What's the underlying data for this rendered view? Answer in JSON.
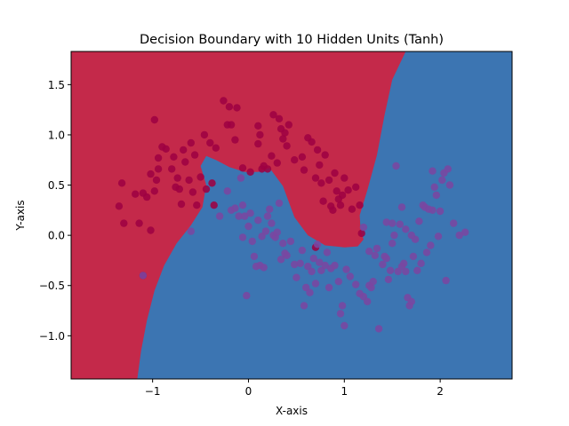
{
  "chart_data": {
    "type": "scatter",
    "title": "Decision Boundary with 10 Hidden Units (Tanh)",
    "xlabel": "X-axis",
    "ylabel": "Y-axis",
    "xlim": [
      -1.85,
      2.75
    ],
    "ylim": [
      -1.43,
      1.83
    ],
    "xticks": [
      -1,
      0,
      1,
      2
    ],
    "xtick_labels": [
      "−1",
      "0",
      "1",
      "2"
    ],
    "yticks": [
      -1.0,
      -0.5,
      0.0,
      0.5,
      1.0,
      1.5
    ],
    "ytick_labels": [
      "−1.0",
      "−0.5",
      "0.0",
      "0.5",
      "1.0",
      "1.5"
    ],
    "grid": false,
    "legend": "none",
    "colors": {
      "region_class_0": "#c4294a",
      "region_class_1": "#3c75b2",
      "point_class_0": "#9e0142",
      "point_class_1": "#7a47a0"
    },
    "boundary": [
      [
        -1.16,
        -1.43
      ],
      [
        -1.12,
        -1.15
      ],
      [
        -1.06,
        -0.85
      ],
      [
        -0.98,
        -0.55
      ],
      [
        -0.88,
        -0.3
      ],
      [
        -0.75,
        -0.08
      ],
      [
        -0.6,
        0.1
      ],
      [
        -0.48,
        0.28
      ],
      [
        -0.44,
        0.5
      ],
      [
        -0.5,
        0.69
      ],
      [
        -0.44,
        0.79
      ],
      [
        -0.34,
        0.75
      ],
      [
        -0.2,
        0.68
      ],
      [
        -0.04,
        0.63
      ],
      [
        0.1,
        0.63
      ],
      [
        0.22,
        0.67
      ],
      [
        0.36,
        0.49
      ],
      [
        0.48,
        0.18
      ],
      [
        0.62,
        0.0
      ],
      [
        0.8,
        -0.1
      ],
      [
        1.0,
        -0.12
      ],
      [
        1.14,
        -0.11
      ],
      [
        1.2,
        -0.04
      ],
      [
        1.17,
        0.05
      ],
      [
        1.16,
        0.2
      ],
      [
        1.24,
        0.45
      ],
      [
        1.34,
        0.8
      ],
      [
        1.42,
        1.2
      ],
      [
        1.5,
        1.55
      ],
      [
        1.64,
        1.83
      ]
    ],
    "series": [
      {
        "class": 0,
        "points": [
          [
            -1.32,
            0.52
          ],
          [
            -1.35,
            0.29
          ],
          [
            -1.3,
            0.12
          ],
          [
            -1.18,
            0.41
          ],
          [
            -1.14,
            0.12
          ],
          [
            -1.1,
            0.42
          ],
          [
            -1.06,
            0.38
          ],
          [
            -1.02,
            0.05
          ],
          [
            -1.02,
            0.61
          ],
          [
            -0.98,
            0.44
          ],
          [
            -0.96,
            0.55
          ],
          [
            -0.94,
            0.66
          ],
          [
            -0.94,
            0.77
          ],
          [
            -0.9,
            0.88
          ],
          [
            -0.86,
            0.86
          ],
          [
            -0.8,
            0.66
          ],
          [
            -0.78,
            0.78
          ],
          [
            -0.76,
            0.48
          ],
          [
            -0.74,
            0.57
          ],
          [
            -0.72,
            0.46
          ],
          [
            -0.7,
            0.31
          ],
          [
            -0.68,
            0.85
          ],
          [
            -0.66,
            0.73
          ],
          [
            -0.62,
            0.55
          ],
          [
            -0.6,
            0.92
          ],
          [
            -0.58,
            0.43
          ],
          [
            -0.56,
            0.8
          ],
          [
            -0.54,
            0.3
          ],
          [
            -0.5,
            0.58
          ],
          [
            -0.46,
            1.0
          ],
          [
            -0.44,
            0.46
          ],
          [
            -0.4,
            0.92
          ],
          [
            -0.38,
            0.52
          ],
          [
            -0.34,
            0.87
          ],
          [
            -0.26,
            1.34
          ],
          [
            -0.22,
            1.1
          ],
          [
            -0.2,
            1.28
          ],
          [
            -0.18,
            1.1
          ],
          [
            -0.14,
            0.95
          ],
          [
            -0.12,
            1.27
          ],
          [
            0.02,
            0.63
          ],
          [
            0.1,
            1.09
          ],
          [
            0.1,
            0.91
          ],
          [
            0.12,
            1.0
          ],
          [
            0.14,
            0.66
          ],
          [
            0.16,
            0.69
          ],
          [
            0.2,
            0.66
          ],
          [
            0.24,
            0.79
          ],
          [
            0.26,
            1.2
          ],
          [
            0.3,
            0.72
          ],
          [
            0.32,
            1.16
          ],
          [
            0.34,
            1.06
          ],
          [
            0.36,
            0.96
          ],
          [
            0.38,
            1.02
          ],
          [
            0.4,
            0.89
          ],
          [
            0.42,
            1.1
          ],
          [
            0.48,
            0.75
          ],
          [
            0.56,
            0.78
          ],
          [
            0.58,
            0.65
          ],
          [
            0.62,
            0.97
          ],
          [
            0.66,
            0.93
          ],
          [
            0.7,
            0.57
          ],
          [
            0.72,
            0.85
          ],
          [
            0.74,
            0.7
          ],
          [
            0.76,
            0.52
          ],
          [
            0.78,
            0.34
          ],
          [
            0.8,
            0.8
          ],
          [
            0.84,
            0.55
          ],
          [
            0.86,
            0.29
          ],
          [
            0.88,
            0.25
          ],
          [
            0.9,
            0.62
          ],
          [
            0.92,
            0.44
          ],
          [
            0.94,
            0.36
          ],
          [
            0.96,
            0.3
          ],
          [
            0.98,
            0.4
          ],
          [
            1.0,
            0.57
          ],
          [
            1.04,
            0.45
          ],
          [
            1.08,
            0.26
          ],
          [
            1.12,
            0.48
          ],
          [
            1.16,
            0.3
          ],
          [
            1.18,
            0.02
          ],
          [
            -1.1,
            -0.4
          ],
          [
            -0.98,
            1.15
          ],
          [
            -0.36,
            0.3
          ],
          [
            -0.06,
            0.67
          ],
          [
            0.7,
            -0.12
          ]
        ]
      },
      {
        "class": 1,
        "points": [
          [
            -1.1,
            -0.4
          ],
          [
            -0.6,
            0.04
          ],
          [
            -0.3,
            0.19
          ],
          [
            -0.22,
            0.44
          ],
          [
            -0.18,
            0.25
          ],
          [
            -0.14,
            0.27
          ],
          [
            -0.1,
            0.19
          ],
          [
            -0.08,
            0.57
          ],
          [
            -0.06,
            0.3
          ],
          [
            -0.06,
            -0.02
          ],
          [
            -0.04,
            0.19
          ],
          [
            -0.02,
            -0.6
          ],
          [
            0.0,
            0.09
          ],
          [
            0.02,
            0.22
          ],
          [
            0.04,
            -0.06
          ],
          [
            0.06,
            -0.21
          ],
          [
            0.08,
            -0.31
          ],
          [
            0.1,
            0.15
          ],
          [
            0.12,
            -0.3
          ],
          [
            0.14,
            -0.01
          ],
          [
            0.16,
            -0.32
          ],
          [
            0.18,
            0.04
          ],
          [
            0.2,
            0.19
          ],
          [
            0.22,
            0.26
          ],
          [
            0.24,
            0.12
          ],
          [
            0.26,
            0.0
          ],
          [
            0.28,
            -0.02
          ],
          [
            0.3,
            0.03
          ],
          [
            0.32,
            0.32
          ],
          [
            0.34,
            -0.24
          ],
          [
            0.36,
            -0.08
          ],
          [
            0.38,
            -0.18
          ],
          [
            0.4,
            -0.2
          ],
          [
            0.44,
            -0.06
          ],
          [
            0.48,
            -0.29
          ],
          [
            0.5,
            -0.42
          ],
          [
            0.54,
            -0.28
          ],
          [
            0.56,
            -0.15
          ],
          [
            0.58,
            -0.7
          ],
          [
            0.6,
            -0.52
          ],
          [
            0.62,
            -0.31
          ],
          [
            0.64,
            -0.57
          ],
          [
            0.66,
            -0.36
          ],
          [
            0.68,
            -0.23
          ],
          [
            0.7,
            -0.48
          ],
          [
            0.72,
            -0.09
          ],
          [
            0.74,
            -0.27
          ],
          [
            0.76,
            -0.35
          ],
          [
            0.8,
            -0.3
          ],
          [
            0.82,
            -0.17
          ],
          [
            0.84,
            -0.52
          ],
          [
            0.86,
            -0.33
          ],
          [
            0.9,
            -0.3
          ],
          [
            0.94,
            -0.46
          ],
          [
            0.96,
            -0.78
          ],
          [
            0.98,
            -0.7
          ],
          [
            1.0,
            -0.9
          ],
          [
            1.02,
            -0.34
          ],
          [
            1.06,
            -0.41
          ],
          [
            1.12,
            -0.49
          ],
          [
            1.16,
            -0.58
          ],
          [
            1.2,
            -0.61
          ],
          [
            1.24,
            -0.66
          ],
          [
            1.26,
            -0.5
          ],
          [
            1.28,
            -0.52
          ],
          [
            1.3,
            -0.46
          ],
          [
            1.34,
            -0.13
          ],
          [
            1.36,
            -0.93
          ],
          [
            1.4,
            -0.29
          ],
          [
            1.42,
            -0.21
          ],
          [
            1.44,
            -0.23
          ],
          [
            1.46,
            -0.44
          ],
          [
            1.48,
            -0.35
          ],
          [
            1.5,
            -0.08
          ],
          [
            1.52,
            0.0
          ],
          [
            1.56,
            -0.36
          ],
          [
            1.58,
            0.11
          ],
          [
            1.6,
            -0.31
          ],
          [
            1.62,
            -0.28
          ],
          [
            1.64,
            -0.36
          ],
          [
            1.66,
            -0.62
          ],
          [
            1.68,
            -0.7
          ],
          [
            1.7,
            -0.66
          ],
          [
            1.72,
            -0.21
          ],
          [
            1.74,
            -0.04
          ],
          [
            1.76,
            -0.35
          ],
          [
            1.8,
            -0.28
          ],
          [
            1.84,
            0.28
          ],
          [
            1.86,
            -0.17
          ],
          [
            1.88,
            0.26
          ],
          [
            1.9,
            -0.1
          ],
          [
            1.92,
            0.25
          ],
          [
            1.94,
            0.48
          ],
          [
            1.96,
            0.4
          ],
          [
            1.98,
            -0.01
          ],
          [
            2.0,
            0.24
          ],
          [
            2.02,
            0.55
          ],
          [
            2.04,
            0.62
          ],
          [
            2.06,
            -0.45
          ],
          [
            2.08,
            0.66
          ],
          [
            2.1,
            0.5
          ],
          [
            2.14,
            0.12
          ],
          [
            2.2,
            0.0
          ],
          [
            2.26,
            0.03
          ],
          [
            1.44,
            0.13
          ],
          [
            1.5,
            0.12
          ],
          [
            1.54,
            0.69
          ],
          [
            1.6,
            0.28
          ],
          [
            1.64,
            0.06
          ],
          [
            1.7,
            0.0
          ],
          [
            1.78,
            0.14
          ],
          [
            1.82,
            0.3
          ],
          [
            1.2,
            0.08
          ],
          [
            1.26,
            -0.16
          ],
          [
            1.32,
            -0.2
          ],
          [
            1.92,
            0.64
          ]
        ]
      }
    ]
  }
}
